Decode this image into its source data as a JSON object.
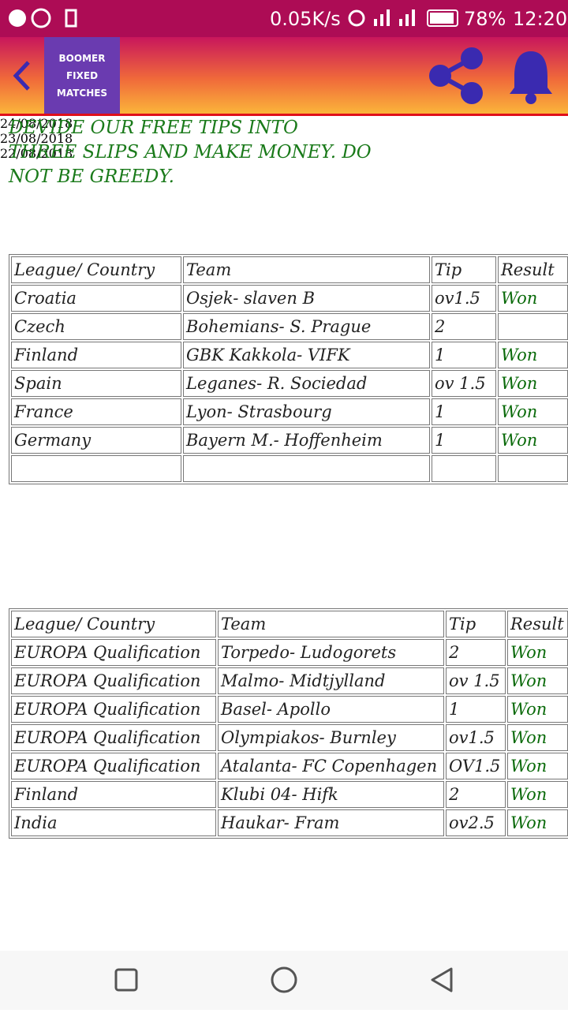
{
  "status_bar": {
    "speed": "0.05K/s",
    "battery": "78%",
    "time": "12:20"
  },
  "header": {
    "title": "BOOMER FIXED MATCHES"
  },
  "intro": "DEVIDE OUR FREE TIPS INTO THREE SLIPS AND MAKE MONEY. DO NOT BE GREEDY.",
  "sections": [
    {
      "date": "24/08/2018",
      "table": {
        "columns": [
          "League/ Country",
          "Team",
          "Tip",
          "Result"
        ],
        "rows": [
          [
            "Croatia",
            "Osjek- slaven B",
            "ov1.5",
            "Won"
          ],
          [
            "Czech",
            "Bohemians- S. Prague",
            "2",
            null
          ],
          [
            "Finland",
            "GBK Kakkola- VIFK",
            "1",
            "Won"
          ],
          [
            "Spain",
            "Leganes- R. Sociedad",
            "ov 1.5",
            "Won"
          ],
          [
            "France",
            "Lyon- Strasbourg",
            "1",
            "Won"
          ],
          [
            "Germany",
            "Bayern M.- Hoffenheim",
            "1",
            "Won"
          ],
          [
            null,
            null,
            null,
            null
          ]
        ]
      }
    },
    {
      "date": "23/08/2018",
      "table": {
        "columns": [
          "League/ Country",
          "Team",
          "Tip",
          "Result"
        ],
        "rows": [
          [
            "EUROPA Qualification",
            "Torpedo- Ludogorets",
            "2",
            "Won"
          ],
          [
            "EUROPA Qualification",
            "Malmo- Midtjylland",
            "ov 1.5",
            "Won"
          ],
          [
            "EUROPA Qualification",
            "Basel- Apollo",
            "1",
            "Won"
          ],
          [
            "EUROPA Qualification",
            "Olympiakos- Burnley",
            "ov1.5",
            "Won"
          ],
          [
            "EUROPA Qualification",
            "Atalanta- FC Copenhagen",
            "OV1.5",
            "Won"
          ],
          [
            "Finland",
            "Klubi 04- Hifk",
            "2",
            "Won"
          ],
          [
            "India",
            "Haukar- Fram",
            "ov2.5",
            "Won"
          ]
        ]
      }
    },
    {
      "date": "22/08/2018"
    }
  ]
}
